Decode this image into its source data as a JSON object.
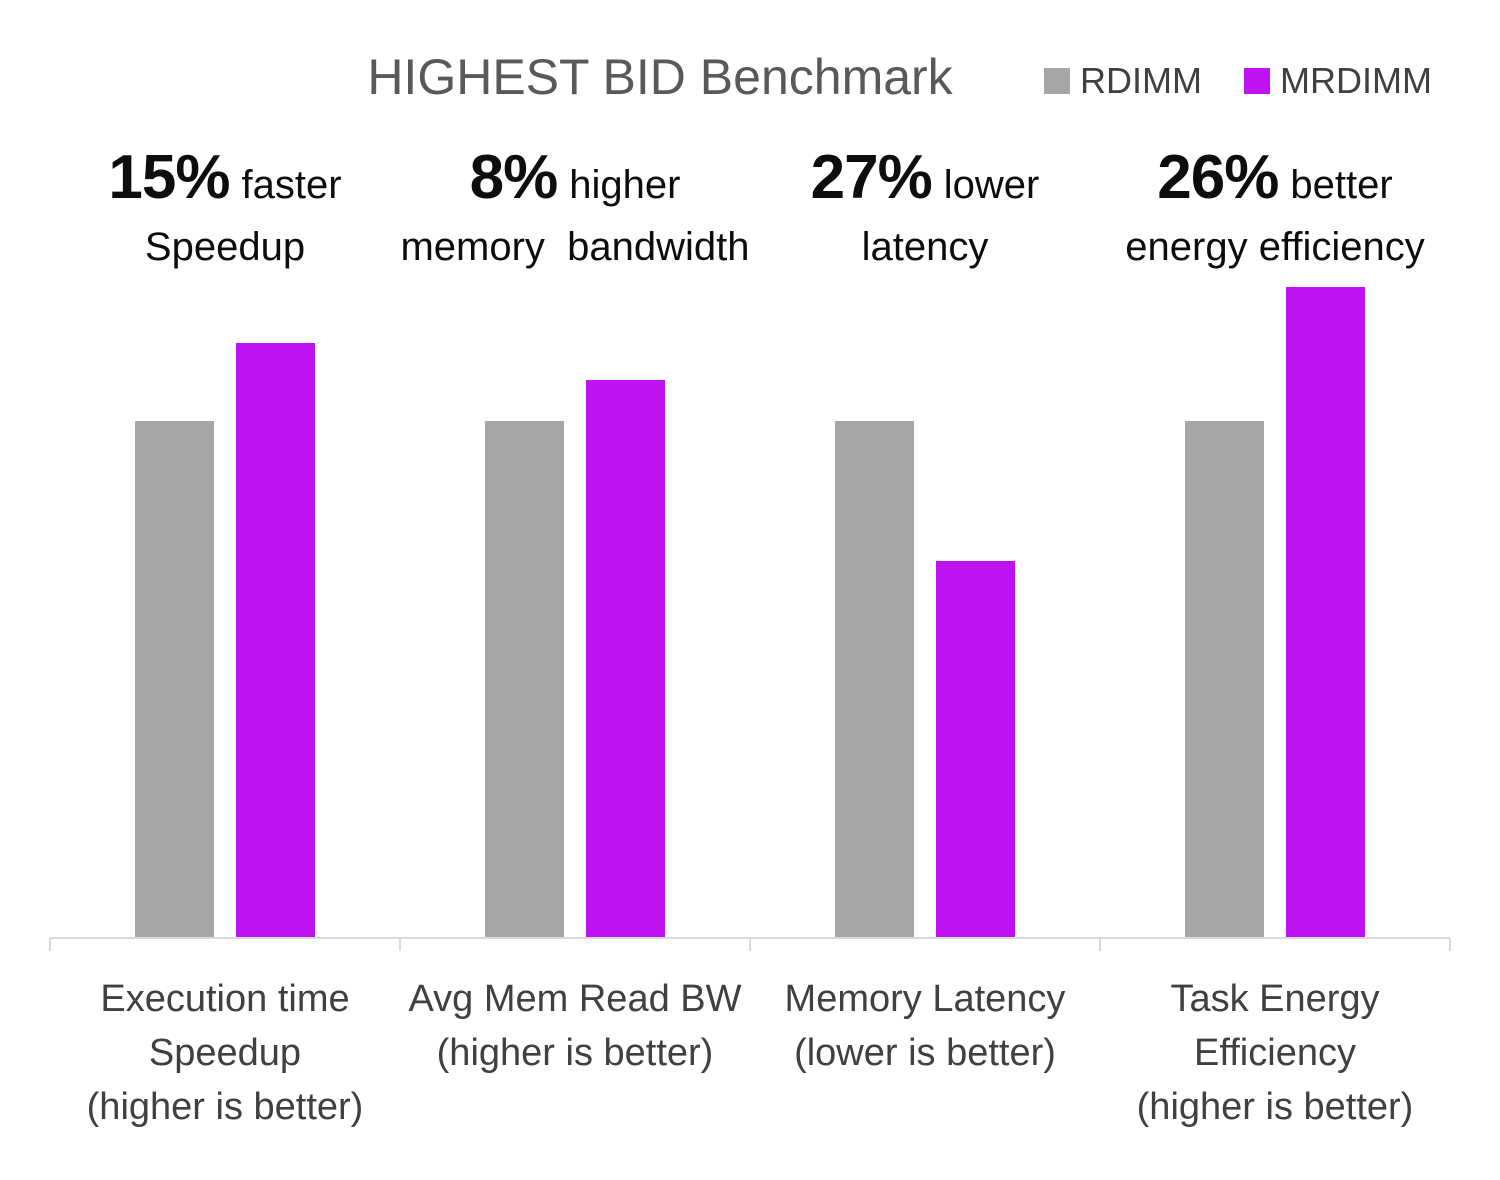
{
  "page": {
    "background": "#ffffff"
  },
  "chart_data": {
    "type": "bar",
    "title": "HIGHEST BID Benchmark",
    "title_color": "#595959",
    "xlabel": "",
    "ylabel": "",
    "grid": false,
    "legend_position": "top-right",
    "axis_color": "#d9d9d9",
    "text_color": "#404040",
    "annotation_color": "#0d0d0d",
    "value_basis": "relative, RDIMM = 1.0",
    "ylim": [
      0,
      1.4
    ],
    "categories": [
      {
        "label": "Execution time Speedup (higher is better)",
        "lines": [
          "Execution time",
          "Speedup",
          "(higher is better)"
        ]
      },
      {
        "label": "Avg Mem Read BW (higher is better)",
        "lines": [
          "Avg Mem Read BW",
          "(higher is better)"
        ]
      },
      {
        "label": "Memory Latency (lower is better)",
        "lines": [
          "Memory Latency",
          "(lower is better)"
        ]
      },
      {
        "label": "Task Energy Efficiency (higher is better)",
        "lines": [
          "Task Energy",
          "Efficiency",
          "(higher is better)"
        ]
      }
    ],
    "series": [
      {
        "name": "RDIMM",
        "color": "#a6a6a6",
        "values": [
          1.0,
          1.0,
          1.0,
          1.0
        ]
      },
      {
        "name": "MRDIMM",
        "color": "#be12f3",
        "values": [
          1.15,
          1.08,
          0.73,
          1.26
        ]
      }
    ],
    "annotations": [
      {
        "value": "15%",
        "suffix": "faster",
        "line2": "Speedup"
      },
      {
        "value": "8%",
        "suffix": "higher",
        "line2": "memory  bandwidth"
      },
      {
        "value": "27%",
        "suffix": "lower",
        "line2": "latency"
      },
      {
        "value": "26%",
        "suffix": "better",
        "line2": "energy efficiency"
      }
    ]
  }
}
